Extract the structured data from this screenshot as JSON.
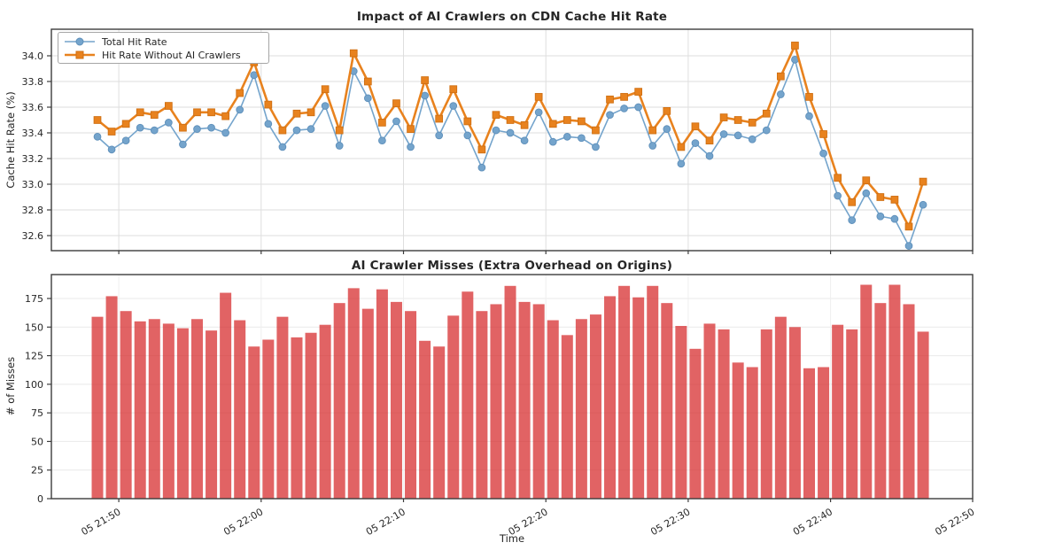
{
  "figure": {
    "background": "#ffffff",
    "border_color": "#3c3c3c",
    "grid_color": "#dedede"
  },
  "chart_data": [
    {
      "type": "line",
      "title": "Impact of AI Crawlers on CDN Cache Hit Rate",
      "ylabel": "Cache Hit Rate (%)",
      "ylim": [
        32.48,
        34.21
      ],
      "yticks": [
        "34.0",
        "33.8",
        "33.6",
        "33.4",
        "33.2",
        "33.0",
        "32.8",
        "32.6"
      ],
      "grid": true,
      "legend_position": "upper left",
      "x_ticks": {
        "labels": [
          "05 21:50",
          "05 22:00",
          "05 22:10",
          "05 22:20",
          "05 22:30",
          "05 22:40",
          "05 22:50"
        ],
        "point_offsets": [
          1.5,
          11.5,
          21.5,
          31.5,
          41.5,
          51.5,
          61.5
        ],
        "labels_visible": false
      },
      "series": [
        {
          "name": "Total Hit Rate",
          "color": "#74a4cc",
          "edge_color": "#5e8fba",
          "marker": "circle",
          "line_width": 1.6,
          "values": [
            33.37,
            33.27,
            33.34,
            33.44,
            33.42,
            33.48,
            33.31,
            33.43,
            33.44,
            33.4,
            33.58,
            33.85,
            33.47,
            33.29,
            33.42,
            33.43,
            33.61,
            33.3,
            33.88,
            33.67,
            33.34,
            33.49,
            33.29,
            33.69,
            33.38,
            33.61,
            33.38,
            33.13,
            33.42,
            33.4,
            33.34,
            33.56,
            33.33,
            33.37,
            33.36,
            33.29,
            33.54,
            33.59,
            33.6,
            33.3,
            33.43,
            33.16,
            33.32,
            33.22,
            33.39,
            33.38,
            33.35,
            33.42,
            33.7,
            33.97,
            33.53,
            33.24,
            32.91,
            32.72,
            32.93,
            32.75,
            32.73,
            32.52,
            32.84
          ]
        },
        {
          "name": "Hit Rate Without AI Crawlers",
          "color": "#e8821e",
          "edge_color": "#cf6f12",
          "marker": "square",
          "line_width": 2.6,
          "values": [
            33.5,
            33.41,
            33.47,
            33.56,
            33.54,
            33.61,
            33.44,
            33.56,
            33.56,
            33.53,
            33.71,
            33.95,
            33.62,
            33.42,
            33.55,
            33.56,
            33.74,
            33.42,
            34.02,
            33.8,
            33.48,
            33.63,
            33.43,
            33.81,
            33.51,
            33.74,
            33.49,
            33.27,
            33.54,
            33.5,
            33.46,
            33.68,
            33.47,
            33.5,
            33.49,
            33.42,
            33.66,
            33.68,
            33.72,
            33.42,
            33.57,
            33.29,
            33.45,
            33.34,
            33.52,
            33.5,
            33.48,
            33.55,
            33.84,
            34.08,
            33.68,
            33.39,
            33.05,
            32.86,
            33.03,
            32.9,
            32.88,
            32.67,
            33.02
          ]
        }
      ]
    },
    {
      "type": "bar",
      "title": "AI Crawler Misses (Extra Overhead on Origins)",
      "xlabel": "Time",
      "ylabel": "# of Misses",
      "ylim": [
        0,
        196
      ],
      "yticks": [
        "0",
        "25",
        "50",
        "75",
        "100",
        "125",
        "150",
        "175"
      ],
      "grid": true,
      "bar_color": "#d62728",
      "bar_opacity": 0.72,
      "x_ticks": {
        "labels": [
          "05 21:50",
          "05 22:00",
          "05 22:10",
          "05 22:20",
          "05 22:30",
          "05 22:40",
          "05 22:50"
        ],
        "point_offsets": [
          1.5,
          11.5,
          21.5,
          31.5,
          41.5,
          51.5,
          61.5
        ],
        "labels_visible": true
      },
      "values": [
        159,
        177,
        164,
        155,
        157,
        153,
        149,
        157,
        147,
        180,
        156,
        133,
        139,
        159,
        141,
        145,
        152,
        171,
        184,
        166,
        183,
        172,
        164,
        138,
        133,
        160,
        181,
        164,
        170,
        186,
        172,
        170,
        156,
        143,
        157,
        161,
        177,
        186,
        176,
        186,
        171,
        151,
        131,
        153,
        148,
        119,
        115,
        148,
        159,
        150,
        114,
        115,
        152,
        148,
        187,
        171,
        187,
        170,
        146
      ]
    }
  ]
}
